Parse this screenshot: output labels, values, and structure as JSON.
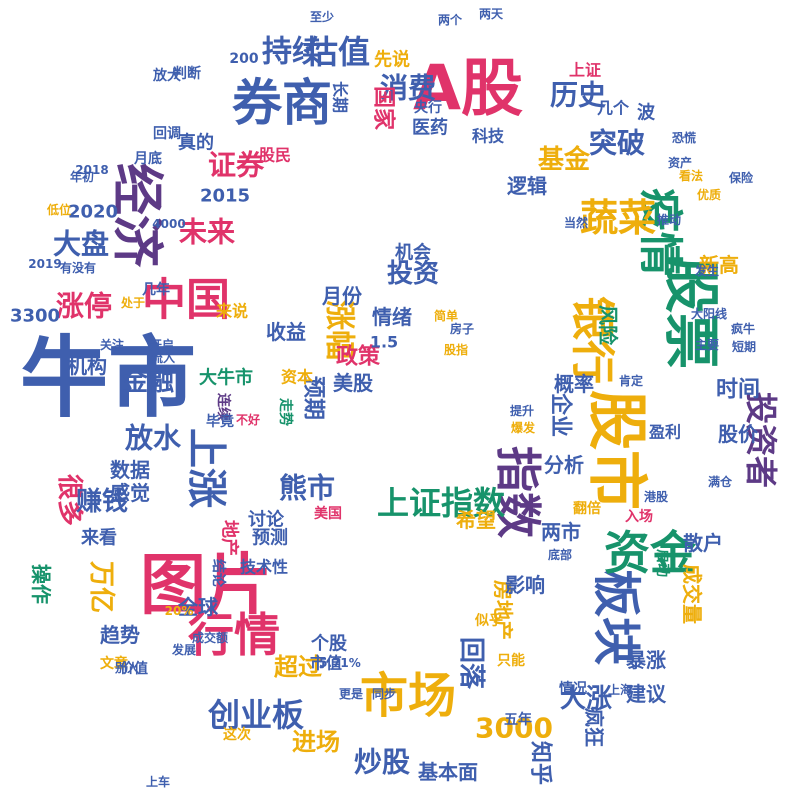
{
  "palette": {
    "blue": "#3f5fae",
    "pink": "#e0336a",
    "green": "#17936b",
    "yellow": "#eeae0c",
    "purple": "#5d3a86"
  },
  "words": [
    {
      "text": "牛市",
      "color": "blue"
    },
    {
      "text": "图片",
      "color": "pink"
    },
    {
      "text": "A股",
      "color": "pink"
    },
    {
      "text": "股市",
      "color": "yellow"
    },
    {
      "text": "股票",
      "color": "green"
    },
    {
      "text": "券商",
      "color": "blue"
    },
    {
      "text": "经济",
      "color": "purple"
    },
    {
      "text": "市场",
      "color": "yellow"
    },
    {
      "text": "行情",
      "color": "pink"
    },
    {
      "text": "板块",
      "color": "blue"
    },
    {
      "text": "资金",
      "color": "green"
    },
    {
      "text": "指数",
      "color": "purple"
    },
    {
      "text": "疫情",
      "color": "green"
    },
    {
      "text": "银行",
      "color": "yellow"
    },
    {
      "text": "上涨",
      "color": "blue"
    },
    {
      "text": "中国",
      "color": "pink"
    },
    {
      "text": "蔬菜",
      "color": "yellow"
    },
    {
      "text": "上证指数",
      "color": "green"
    },
    {
      "text": "投资者",
      "color": "purple"
    },
    {
      "text": "创业板",
      "color": "blue"
    },
    {
      "text": "估值",
      "color": "blue"
    },
    {
      "text": "持续",
      "color": "blue"
    },
    {
      "text": "消费",
      "color": "blue"
    },
    {
      "text": "历史",
      "color": "blue"
    },
    {
      "text": "突破",
      "color": "blue"
    },
    {
      "text": "证券",
      "color": "pink"
    },
    {
      "text": "基金",
      "color": "yellow"
    },
    {
      "text": "投资",
      "color": "blue"
    },
    {
      "text": "涨幅",
      "color": "yellow"
    },
    {
      "text": "熊市",
      "color": "blue"
    },
    {
      "text": "炒股",
      "color": "blue"
    },
    {
      "text": "3000",
      "color": "yellow"
    },
    {
      "text": "大盘",
      "color": "blue"
    },
    {
      "text": "涨停",
      "color": "pink"
    },
    {
      "text": "未来",
      "color": "pink"
    },
    {
      "text": "放水",
      "color": "blue"
    },
    {
      "text": "很多",
      "color": "pink"
    },
    {
      "text": "赚钱",
      "color": "blue"
    },
    {
      "text": "金融",
      "color": "blue"
    },
    {
      "text": "大涨",
      "color": "blue"
    },
    {
      "text": "回落",
      "color": "blue"
    },
    {
      "text": "万亿",
      "color": "yellow"
    },
    {
      "text": "进场",
      "color": "yellow"
    },
    {
      "text": "超过",
      "color": "yellow"
    },
    {
      "text": "政策",
      "color": "pink"
    },
    {
      "text": "月份",
      "color": "blue"
    },
    {
      "text": "情绪",
      "color": "blue"
    },
    {
      "text": "收益",
      "color": "blue"
    },
    {
      "text": "预期",
      "color": "blue"
    },
    {
      "text": "美股",
      "color": "blue"
    },
    {
      "text": "机构",
      "color": "blue"
    },
    {
      "text": "数据",
      "color": "blue"
    },
    {
      "text": "感觉",
      "color": "blue"
    },
    {
      "text": "趋势",
      "color": "blue"
    },
    {
      "text": "全球",
      "color": "blue"
    },
    {
      "text": "房地产",
      "color": "yellow"
    },
    {
      "text": "成交量",
      "color": "yellow"
    },
    {
      "text": "散户",
      "color": "blue"
    },
    {
      "text": "企业",
      "color": "blue"
    },
    {
      "text": "概率",
      "color": "blue"
    },
    {
      "text": "分析",
      "color": "blue"
    },
    {
      "text": "希望",
      "color": "yellow"
    },
    {
      "text": "影响",
      "color": "blue"
    },
    {
      "text": "两市",
      "color": "blue"
    },
    {
      "text": "暴涨",
      "color": "blue"
    },
    {
      "text": "建议",
      "color": "blue"
    },
    {
      "text": "疯狂",
      "color": "blue"
    },
    {
      "text": "基本面",
      "color": "blue"
    },
    {
      "text": "知乎",
      "color": "blue"
    },
    {
      "text": "国家",
      "color": "pink"
    },
    {
      "text": "医药",
      "color": "blue"
    },
    {
      "text": "科技",
      "color": "blue"
    },
    {
      "text": "逻辑",
      "color": "blue"
    },
    {
      "text": "新高",
      "color": "yellow"
    },
    {
      "text": "风险",
      "color": "green"
    },
    {
      "text": "时间",
      "color": "blue"
    },
    {
      "text": "股价",
      "color": "blue"
    },
    {
      "text": "机会",
      "color": "blue"
    },
    {
      "text": "讨论",
      "color": "blue"
    },
    {
      "text": "预测",
      "color": "blue"
    },
    {
      "text": "技术性",
      "color": "blue"
    },
    {
      "text": "大牛市",
      "color": "green"
    },
    {
      "text": "2020",
      "color": "blue"
    },
    {
      "text": "2015",
      "color": "blue"
    },
    {
      "text": "3300",
      "color": "blue"
    },
    {
      "text": "操作",
      "color": "green"
    },
    {
      "text": "来看",
      "color": "blue"
    },
    {
      "text": "真的",
      "color": "blue"
    },
    {
      "text": "长期",
      "color": "blue"
    },
    {
      "text": "上证",
      "color": "pink"
    },
    {
      "text": "股民",
      "color": "pink"
    },
    {
      "text": "来说",
      "color": "yellow"
    },
    {
      "text": "至少",
      "color": "blue"
    },
    {
      "text": "两个",
      "color": "blue"
    },
    {
      "text": "两天",
      "color": "blue"
    },
    {
      "text": "先说",
      "color": "yellow"
    },
    {
      "text": "央行",
      "color": "blue"
    },
    {
      "text": "1.5",
      "color": "blue"
    },
    {
      "text": "资本",
      "color": "yellow"
    },
    {
      "text": "个股",
      "color": "blue"
    },
    {
      "text": "市值",
      "color": "blue"
    },
    {
      "text": "结论",
      "color": "blue"
    },
    {
      "text": "地产",
      "color": "pink"
    },
    {
      "text": "连续",
      "color": "purple"
    },
    {
      "text": "走势",
      "color": "green"
    },
    {
      "text": "美国",
      "color": "pink"
    },
    {
      "text": "盈利",
      "color": "blue"
    },
    {
      "text": "几个",
      "color": "blue"
    },
    {
      "text": "波",
      "color": "blue"
    },
    {
      "text": "200",
      "color": "blue"
    },
    {
      "text": "判断",
      "color": "blue"
    },
    {
      "text": "放大",
      "color": "blue"
    },
    {
      "text": "回调",
      "color": "blue"
    },
    {
      "text": "月底",
      "color": "blue"
    },
    {
      "text": "成交额",
      "color": "blue"
    },
    {
      "text": "文章",
      "color": "yellow"
    },
    {
      "text": "价值",
      "color": "blue"
    },
    {
      "text": "发展",
      "color": "blue"
    },
    {
      "text": "这次",
      "color": "yellow"
    },
    {
      "text": "上车",
      "color": "blue"
    },
    {
      "text": "只能",
      "color": "yellow"
    },
    {
      "text": "情况",
      "color": "blue"
    },
    {
      "text": "五年",
      "color": "blue"
    },
    {
      "text": "翻倍",
      "color": "yellow"
    },
    {
      "text": "入场",
      "color": "pink"
    },
    {
      "text": "启动",
      "color": "green"
    },
    {
      "text": "保险",
      "color": "blue"
    },
    {
      "text": "肯定",
      "color": "blue"
    },
    {
      "text": "满仓",
      "color": "blue"
    },
    {
      "text": "似乎",
      "color": "yellow"
    },
    {
      "text": "别人",
      "color": "blue"
    },
    {
      "text": "更是",
      "color": "blue"
    },
    {
      "text": "同步",
      "color": "blue"
    },
    {
      "text": "年初",
      "color": "blue"
    },
    {
      "text": "流入",
      "color": "blue"
    },
    {
      "text": "开启",
      "color": "blue"
    },
    {
      "text": "关注",
      "color": "blue"
    },
    {
      "text": "处于",
      "color": "yellow"
    },
    {
      "text": "股指",
      "color": "yellow"
    },
    {
      "text": "房子",
      "color": "blue"
    },
    {
      "text": "2019",
      "color": "blue"
    },
    {
      "text": "有没有",
      "color": "blue"
    },
    {
      "text": "低位",
      "color": "yellow"
    },
    {
      "text": "2018",
      "color": "blue"
    },
    {
      "text": "4000",
      "color": "blue"
    },
    {
      "text": "5.71%",
      "color": "blue"
    },
    {
      "text": "20%",
      "color": "yellow"
    },
    {
      "text": "几年",
      "color": "blue"
    },
    {
      "text": "毕竟",
      "color": "blue"
    },
    {
      "text": "不好",
      "color": "pink"
    },
    {
      "text": "提升",
      "color": "blue"
    },
    {
      "text": "爆发",
      "color": "yellow"
    },
    {
      "text": "底部",
      "color": "blue"
    },
    {
      "text": "上海",
      "color": "blue"
    },
    {
      "text": "港股",
      "color": "blue"
    },
    {
      "text": "看法",
      "color": "yellow"
    },
    {
      "text": "发生",
      "color": "blue"
    },
    {
      "text": "短期",
      "color": "blue"
    },
    {
      "text": "大阳线",
      "color": "blue"
    },
    {
      "text": "疯牛",
      "color": "blue"
    },
    {
      "text": "主要",
      "color": "blue"
    },
    {
      "text": "当然",
      "color": "blue"
    },
    {
      "text": "恐慌",
      "color": "blue"
    },
    {
      "text": "推动",
      "color": "blue"
    },
    {
      "text": "优质",
      "color": "yellow"
    },
    {
      "text": "资产",
      "color": "blue"
    },
    {
      "text": "简单",
      "color": "yellow"
    }
  ]
}
